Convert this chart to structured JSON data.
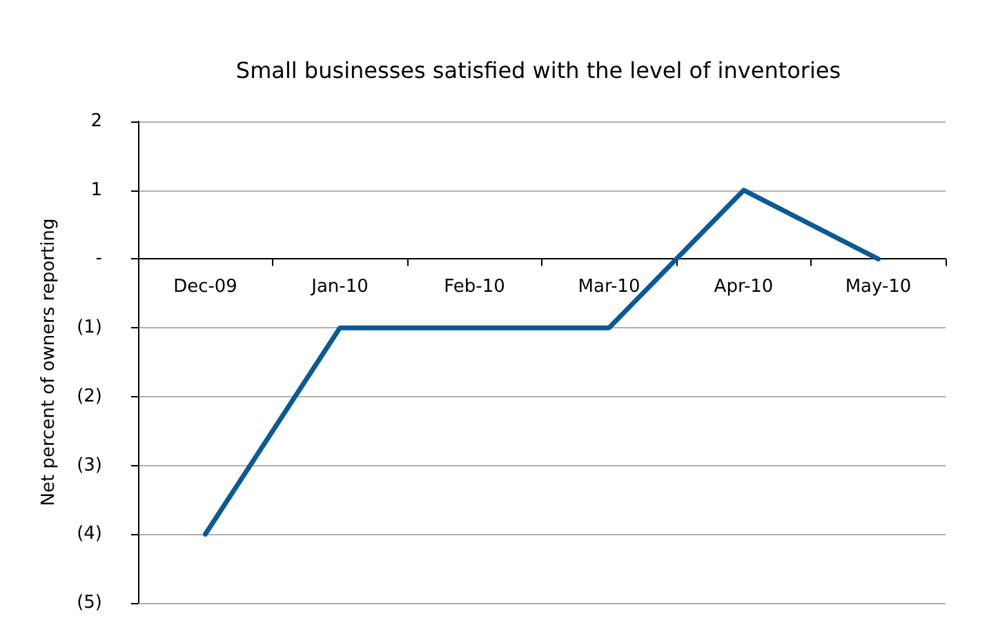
{
  "chart_data": {
    "type": "line",
    "title": "Small businesses satisfied with the level of inventories",
    "ylabel": "Net percent of owners reporting",
    "categories": [
      "Dec-09",
      "Jan-10",
      "Feb-10",
      "Mar-10",
      "Apr-10",
      "May-10"
    ],
    "series": [
      {
        "color": "#0a5a94",
        "values": [
          -4,
          -1,
          -1,
          -1,
          1,
          0
        ]
      }
    ],
    "ylim": [
      -5,
      2
    ],
    "yticks": [
      2,
      1,
      {
        "value": 0,
        "label": "-"
      },
      {
        "value": -1,
        "label": "(1)"
      },
      {
        "value": -2,
        "label": "(2)"
      },
      {
        "value": -3,
        "label": "(3)"
      },
      {
        "value": -4,
        "label": "(4)"
      },
      {
        "value": -5,
        "label": "(5)"
      }
    ],
    "grid": "y",
    "marker": "none",
    "line_style": "solid"
  }
}
